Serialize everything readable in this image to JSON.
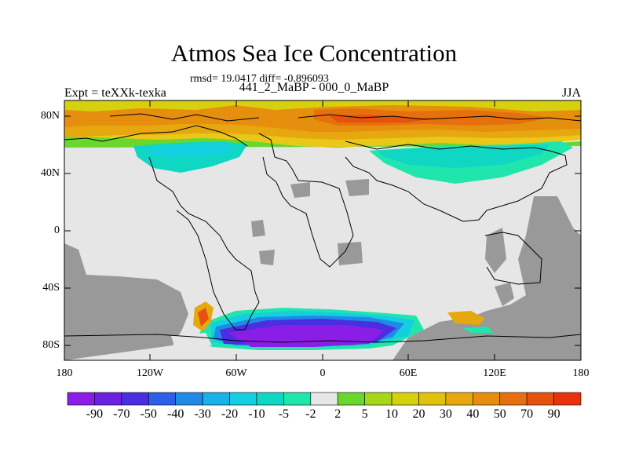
{
  "title": "Atmos Sea Ice Concentration",
  "stats": "rmsd= 19.0417 diff= -0.896093",
  "left_label": "Expt = teXXk-texka",
  "center_label": "441_2_MaBP - 000_0_MaBP",
  "right_label": "JJA",
  "y_ticks": [
    "80N",
    "40N",
    "0",
    "40S",
    "80S"
  ],
  "x_ticks": [
    "180",
    "120W",
    "60W",
    "0",
    "60E",
    "120E",
    "180"
  ],
  "colorbar": {
    "labels": [
      "-90",
      "-70",
      "-50",
      "-40",
      "-30",
      "-20",
      "-10",
      "-5",
      "-2",
      "2",
      "5",
      "10",
      "20",
      "30",
      "40",
      "50",
      "70",
      "90"
    ],
    "colors": [
      "#8a1ee6",
      "#6a22e0",
      "#4a2ee0",
      "#2f5ee8",
      "#1f8ae6",
      "#18b2e6",
      "#14cfe0",
      "#10d6c4",
      "#20e6ae",
      "#e6e6e6",
      "#6ad62e",
      "#a6d618",
      "#d6d00e",
      "#e0c20e",
      "#e6a80e",
      "#e68e0e",
      "#e6700e",
      "#e6520e",
      "#e6320e"
    ]
  },
  "colors": {
    "land": "#999999",
    "no_change": "#e6e6e6",
    "background": "#ffffff"
  }
}
